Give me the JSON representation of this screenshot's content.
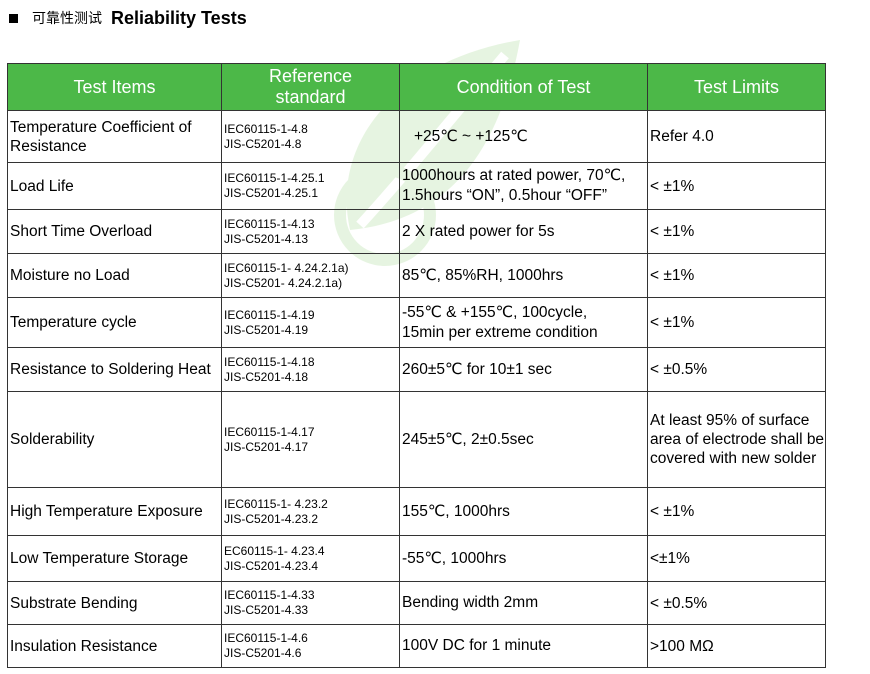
{
  "heading": {
    "cn": "可靠性测试",
    "en": "Reliability Tests"
  },
  "table": {
    "headers": [
      "Test Items",
      "Reference standard",
      "Condition of Test",
      "Test Limits"
    ],
    "rows": [
      {
        "item": "Temperature Coefficient of Resistance",
        "ref1": "IEC60115-1-4.8",
        "ref2": "JIS-C5201-4.8",
        "cond1": "+25℃ ~ +125℃",
        "cond2": "",
        "limit": "Refer 4.0"
      },
      {
        "item": "Load Life",
        "ref1": "IEC60115-1-4.25.1",
        "ref2": "JIS-C5201-4.25.1",
        "cond1": "1000hours at rated power, 70℃,",
        "cond2": "1.5hours “ON”, 0.5hour “OFF”",
        "limit": "< ±1%"
      },
      {
        "item": "Short Time Overload",
        "ref1": "IEC60115-1-4.13",
        "ref2": "JIS-C5201-4.13",
        "cond1": "2 X rated power for 5s",
        "cond2": "",
        "limit": "< ±1%"
      },
      {
        "item": "Moisture no Load",
        "ref1": "IEC60115-1- 4.24.2.1a)",
        "ref2": "JIS-C5201- 4.24.2.1a)",
        "cond1": "85℃, 85%RH, 1000hrs",
        "cond2": "",
        "limit": "< ±1%"
      },
      {
        "item": "Temperature cycle",
        "ref1": "IEC60115-1-4.19",
        "ref2": "JIS-C5201-4.19",
        "cond1": "-55℃ & +155℃, 100cycle,",
        "cond2": "15min per extreme condition",
        "limit": "< ±1%"
      },
      {
        "item": "Resistance to Soldering Heat",
        "ref1": "IEC60115-1-4.18",
        "ref2": "JIS-C5201-4.18",
        "cond1": "260±5℃ for 10±1 sec",
        "cond2": "",
        "limit": "< ±0.5%"
      },
      {
        "item": "Solderability",
        "ref1": "IEC60115-1-4.17",
        "ref2": "JIS-C5201-4.17",
        "cond1": "245±5℃, 2±0.5sec",
        "cond2": "",
        "limit": "At least 95% of surface area of electrode shall be covered with new solder"
      },
      {
        "item": "High Temperature Exposure",
        "ref1": "IEC60115-1- 4.23.2",
        "ref2": "JIS-C5201-4.23.2",
        "cond1": "155℃, 1000hrs",
        "cond2": "",
        "limit": "< ±1%"
      },
      {
        "item": "Low Temperature Storage",
        "ref1": "EC60115-1- 4.23.4",
        "ref2": "JIS-C5201-4.23.4",
        "cond1": "-55℃, 1000hrs",
        "cond2": "",
        "limit": "<±1%"
      },
      {
        "item": "Substrate Bending",
        "ref1": "IEC60115-1-4.33",
        "ref2": "JIS-C5201-4.33",
        "cond1": "Bending width 2mm",
        "cond2": "",
        "limit": "< ±0.5%"
      },
      {
        "item": "Insulation Resistance",
        "ref1": "IEC60115-1-4.6",
        "ref2": "JIS-C5201-4.6",
        "cond1": "100V DC for 1 minute",
        "cond2": "",
        "limit": ">100 MΩ"
      }
    ]
  },
  "colors": {
    "header_bg": "#4cb848",
    "header_text": "#ffffff",
    "watermark": "#6cc24a"
  },
  "watermark_icon": "leaf-logo-icon"
}
